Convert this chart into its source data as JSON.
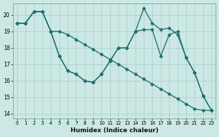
{
  "background_color": "#cce8e4",
  "grid_color_major": "#aacfcb",
  "grid_color_minor": "#bbdbd7",
  "line_color": "#1e7070",
  "marker": "D",
  "markersize": 2.5,
  "linewidth": 1.0,
  "xlabel": "Humidex (Indice chaleur)",
  "xlim": [
    -0.5,
    23.5
  ],
  "ylim": [
    13.7,
    20.7
  ],
  "xticks": [
    0,
    1,
    2,
    3,
    4,
    5,
    6,
    7,
    8,
    9,
    10,
    11,
    12,
    13,
    14,
    15,
    16,
    17,
    18,
    19,
    20,
    21,
    22,
    23
  ],
  "yticks": [
    14,
    15,
    16,
    17,
    18,
    19,
    20
  ],
  "series": [
    {
      "x": [
        0,
        1,
        2,
        3,
        4,
        5,
        6,
        7,
        8,
        9,
        10,
        11,
        12,
        13,
        14,
        15,
        16,
        17,
        18,
        19,
        20,
        21,
        22,
        23
      ],
      "y": [
        19.5,
        19.5,
        20.2,
        20.2,
        19.0,
        17.5,
        16.6,
        16.4,
        16.0,
        15.9,
        16.4,
        17.2,
        18.0,
        18.0,
        19.0,
        19.1,
        19.1,
        17.5,
        18.8,
        19.0,
        17.4,
        16.5,
        15.1,
        14.2
      ]
    },
    {
      "x": [
        0,
        1,
        2,
        3,
        4,
        5,
        6,
        7,
        8,
        9,
        10,
        11,
        12,
        13,
        14,
        15,
        16,
        17,
        18,
        19,
        20,
        21,
        22,
        23
      ],
      "y": [
        19.5,
        19.5,
        20.2,
        20.2,
        19.0,
        17.5,
        16.6,
        16.4,
        16.0,
        15.9,
        16.4,
        17.2,
        18.0,
        18.0,
        19.0,
        20.4,
        19.5,
        19.1,
        19.2,
        18.8,
        17.4,
        16.5,
        15.1,
        14.2
      ]
    },
    {
      "x": [
        0,
        1,
        2,
        3,
        4,
        5,
        6,
        7,
        8,
        9,
        10,
        11,
        12,
        13,
        14,
        15,
        16,
        17,
        18,
        19,
        20,
        21,
        22,
        23
      ],
      "y": [
        19.5,
        19.5,
        20.2,
        20.2,
        19.0,
        19.0,
        18.8,
        18.5,
        18.2,
        17.9,
        17.6,
        17.3,
        17.0,
        16.7,
        16.4,
        16.1,
        15.8,
        15.5,
        15.2,
        14.9,
        14.6,
        14.3,
        14.2,
        14.2
      ]
    }
  ]
}
